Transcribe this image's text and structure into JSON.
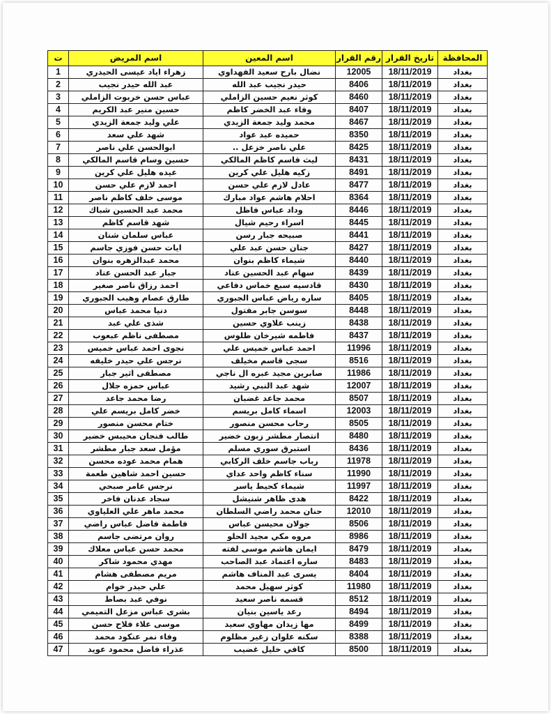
{
  "header": {
    "governorate": "المحافظة",
    "date": "تاريخ القرار",
    "decision_no": "رقم القرار",
    "helper": "اسم المعين",
    "patient": "اسم المريض",
    "seq": "ت"
  },
  "rows": [
    {
      "seq": "1",
      "patient": "زهراء اياد عيسى الحيدري",
      "helper": "نضال بارح سعيد الفهداوي",
      "decision_no": "12005",
      "date": "18/11/2019",
      "governorate": "بغداد"
    },
    {
      "seq": "2",
      "patient": "عبد الله حيدر نجيب",
      "helper": "حيدر نجيب عبد الله",
      "decision_no": "8406",
      "date": "18/11/2019",
      "governorate": "بغداد"
    },
    {
      "seq": "3",
      "patient": "عباس حسن خربوت الزاملي",
      "helper": "كوثر نعيم حسين الزاملي",
      "decision_no": "8460",
      "date": "18/11/2019",
      "governorate": "بغداد"
    },
    {
      "seq": "4",
      "patient": "حسين منير عبد الكريم",
      "helper": "وفاء عبد الخضر كاظم",
      "decision_no": "8407",
      "date": "18/11/2019",
      "governorate": "بغداد"
    },
    {
      "seq": "5",
      "patient": "علي وليد جمعة الزيدي",
      "helper": "محمد وليد جمعة الزيدي",
      "decision_no": "8467",
      "date": "18/11/2019",
      "governorate": "بغداد"
    },
    {
      "seq": "6",
      "patient": "شهد علي سعد",
      "helper": "حميده عبد عواد",
      "decision_no": "8350",
      "date": "18/11/2019",
      "governorate": "بغداد"
    },
    {
      "seq": "7",
      "patient": "ابوالحسن علي ناصر",
      "helper": "علي ناصر خزعل ..",
      "decision_no": "8425",
      "date": "18/11/2019",
      "governorate": "بغداد"
    },
    {
      "seq": "8",
      "patient": "حسين وسام قاسم المالكي",
      "helper": "ليث قاسم كاظم المالكي",
      "decision_no": "8431",
      "date": "18/11/2019",
      "governorate": "بغداد"
    },
    {
      "seq": "9",
      "patient": "عيده هليل علي كرين",
      "helper": "زكيه هليل علي كرين",
      "decision_no": "8491",
      "date": "18/11/2019",
      "governorate": "بغداد"
    },
    {
      "seq": "10",
      "patient": "احمد لازم علي حسن",
      "helper": "عادل لازم علي حسن",
      "decision_no": "8477",
      "date": "18/11/2019",
      "governorate": "بغداد"
    },
    {
      "seq": "11",
      "patient": "موسى خلف كاظم ناصر",
      "helper": "احلام هاشم عواد مبارك",
      "decision_no": "8364",
      "date": "18/11/2019",
      "governorate": "بغداد"
    },
    {
      "seq": "12",
      "patient": "محمد عبد الحسين شباك",
      "helper": "وداد عباس فاظل",
      "decision_no": "8446",
      "date": "18/11/2019",
      "governorate": "بغداد"
    },
    {
      "seq": "13",
      "patient": "شهد قاسم كاظم",
      "helper": "اسراء رحيم شيال",
      "decision_no": "8445",
      "date": "18/11/2019",
      "governorate": "بغداد"
    },
    {
      "seq": "14",
      "patient": "عباس سلمان شنان",
      "helper": "صبيحه جبار رسن",
      "decision_no": "8441",
      "date": "18/11/2019",
      "governorate": "بغداد"
    },
    {
      "seq": "15",
      "patient": "ايات حسن فوزي جاسم",
      "helper": "جنان حسن عبد علي",
      "decision_no": "8427",
      "date": "18/11/2019",
      "governorate": "بغداد"
    },
    {
      "seq": "16",
      "patient": "محمد عبدالزهره بنوان",
      "helper": "شيماء كاظم بنوان",
      "decision_no": "8440",
      "date": "18/11/2019",
      "governorate": "بغداد"
    },
    {
      "seq": "17",
      "patient": "جبار عبد الحسن عناد",
      "helper": "سهام عبد الحسين عناد",
      "decision_no": "8439",
      "date": "18/11/2019",
      "governorate": "بغداد"
    },
    {
      "seq": "18",
      "patient": "احمد رزاق ناصر صغير",
      "helper": "قادسيه سبع خماس دفاعي",
      "decision_no": "8430",
      "date": "18/11/2019",
      "governorate": "بغداد"
    },
    {
      "seq": "19",
      "patient": "طارق عصام وهيب الجبوري",
      "helper": "ساره رياض عباس الجبوري",
      "decision_no": "8405",
      "date": "18/11/2019",
      "governorate": "بغداد"
    },
    {
      "seq": "20",
      "patient": "دنيا محمد عباس",
      "helper": "سوسن جابر مفتول",
      "decision_no": "8448",
      "date": "18/11/2019",
      "governorate": "بغداد"
    },
    {
      "seq": "21",
      "patient": "شذى علي عبد",
      "helper": "زينب علاوي حسين",
      "decision_no": "8438",
      "date": "18/11/2019",
      "governorate": "بغداد"
    },
    {
      "seq": "22",
      "patient": "مصطفى ناظم عبعوب",
      "helper": "فاطمه شيرخان طلوس",
      "decision_no": "8437",
      "date": "18/11/2019",
      "governorate": "بغداد"
    },
    {
      "seq": "23",
      "patient": "نجوى احمد عباس خميس",
      "helper": "احمد عباس خميس علي",
      "decision_no": "11996",
      "date": "18/11/2019",
      "governorate": "بغداد"
    },
    {
      "seq": "24",
      "patient": "نرجس علي حيدر خليفه",
      "helper": "سجى قاسم مخيلف",
      "decision_no": "8516",
      "date": "18/11/2019",
      "governorate": "بغداد"
    },
    {
      "seq": "25",
      "patient": "مصطفى اثير جبار",
      "helper": "صابرين مجيد عبره ال ناجي",
      "decision_no": "11986",
      "date": "18/11/2019",
      "governorate": "بغداد"
    },
    {
      "seq": "26",
      "patient": "عباس حمزه جلال",
      "helper": "شهد عبد النبي رشيد",
      "decision_no": "12007",
      "date": "18/11/2019",
      "governorate": "بغداد"
    },
    {
      "seq": "27",
      "patient": "رضا محمد جاعد",
      "helper": "محمد جاعد غضبان",
      "decision_no": "8507",
      "date": "18/11/2019",
      "governorate": "بغداد"
    },
    {
      "seq": "28",
      "patient": "خضر كامل بريسم علي",
      "helper": "اسماء كامل بريسم",
      "decision_no": "12003",
      "date": "18/11/2019",
      "governorate": "بغداد"
    },
    {
      "seq": "29",
      "patient": "ختام محسن منصور",
      "helper": "رحاب محسن منصور",
      "decision_no": "8505",
      "date": "18/11/2019",
      "governorate": "بغداد"
    },
    {
      "seq": "30",
      "patient": "طالب فنجان محيبس خضير",
      "helper": "انتصار مطشر زبون خضير",
      "decision_no": "8480",
      "date": "18/11/2019",
      "governorate": "بغداد"
    },
    {
      "seq": "31",
      "patient": "مؤمل سعد جبار مطشر",
      "helper": "استبرق سوري مسلم",
      "decision_no": "8436",
      "date": "18/11/2019",
      "governorate": "بغداد"
    },
    {
      "seq": "32",
      "patient": "همام محمد عوده محسن",
      "helper": "رباب جاسم خلف الركابي",
      "decision_no": "11978",
      "date": "18/11/2019",
      "governorate": "بغداد"
    },
    {
      "seq": "33",
      "patient": "حسين احمد شاهين طعمة",
      "helper": "سناء كاظم واحد عداي",
      "decision_no": "11990",
      "date": "18/11/2019",
      "governorate": "بغداد"
    },
    {
      "seq": "34",
      "patient": "نرجس عامر صبحي",
      "helper": "شيماء كحيط ياسر",
      "decision_no": "11997",
      "date": "18/11/2019",
      "governorate": "بغداد"
    },
    {
      "seq": "35",
      "patient": "سجاد عدنان فاخر",
      "helper": "هدى ظاهر شنيشل",
      "decision_no": "8422",
      "date": "18/11/2019",
      "governorate": "بغداد"
    },
    {
      "seq": "36",
      "patient": "محمد ماهر علي العلياوي",
      "helper": "حنان محمد راضي السلطان",
      "decision_no": "12010",
      "date": "18/11/2019",
      "governorate": "بغداد"
    },
    {
      "seq": "37",
      "patient": "فاطمة فاضل عباس راضي",
      "helper": "جولان محيسن عباس",
      "decision_no": "8506",
      "date": "18/11/2019",
      "governorate": "بغداد"
    },
    {
      "seq": "38",
      "patient": "روان مرتضى جاسم",
      "helper": "مروه مكي مجيد الحلو",
      "decision_no": "8986",
      "date": "18/11/2019",
      "governorate": "بغداد"
    },
    {
      "seq": "39",
      "patient": "محمد حسن عباس معلاك",
      "helper": "ايمان هاشم موسى لفته",
      "decision_no": "8479",
      "date": "18/11/2019",
      "governorate": "بغداد"
    },
    {
      "seq": "40",
      "patient": "مهدي محمود شاكر",
      "helper": "ساره اعتماد عبد الصاحب",
      "decision_no": "8483",
      "date": "18/11/2019",
      "governorate": "بغداد"
    },
    {
      "seq": "41",
      "patient": "مريم مصطفى هشام",
      "helper": "يسرى عبد المناف هاشم",
      "decision_no": "8404",
      "date": "18/11/2019",
      "governorate": "بغداد"
    },
    {
      "seq": "42",
      "patient": "علي حيدر خوام",
      "helper": "كوثر سهيل محمد",
      "decision_no": "11980",
      "date": "18/11/2019",
      "governorate": "بغداد"
    },
    {
      "seq": "43",
      "patient": "نوفي عبد بصاط",
      "helper": "قسمه ناصر سعيد",
      "decision_no": "8512",
      "date": "18/11/2019",
      "governorate": "بغداد"
    },
    {
      "seq": "44",
      "patient": "بشرى عباس مزعل التميمي",
      "helper": "رعد ياسين بنيان",
      "decision_no": "8494",
      "date": "18/11/2019",
      "governorate": "بغداد"
    },
    {
      "seq": "45",
      "patient": "موسى علاء فلاح حسن",
      "helper": "مها زيدان مهاوي سعيد",
      "decision_no": "8499",
      "date": "18/11/2019",
      "governorate": "بغداد"
    },
    {
      "seq": "46",
      "patient": "وفاء نمر عنكود محمد",
      "helper": "سكنه علوان زغير مظلوم",
      "decision_no": "8388",
      "date": "18/11/2019",
      "governorate": "بغداد"
    },
    {
      "seq": "47",
      "patient": "عذراء فاضل محمود عويد",
      "helper": "كافي خليل غضيب",
      "decision_no": "8500",
      "date": "18/11/2019",
      "governorate": "بغداد"
    }
  ]
}
